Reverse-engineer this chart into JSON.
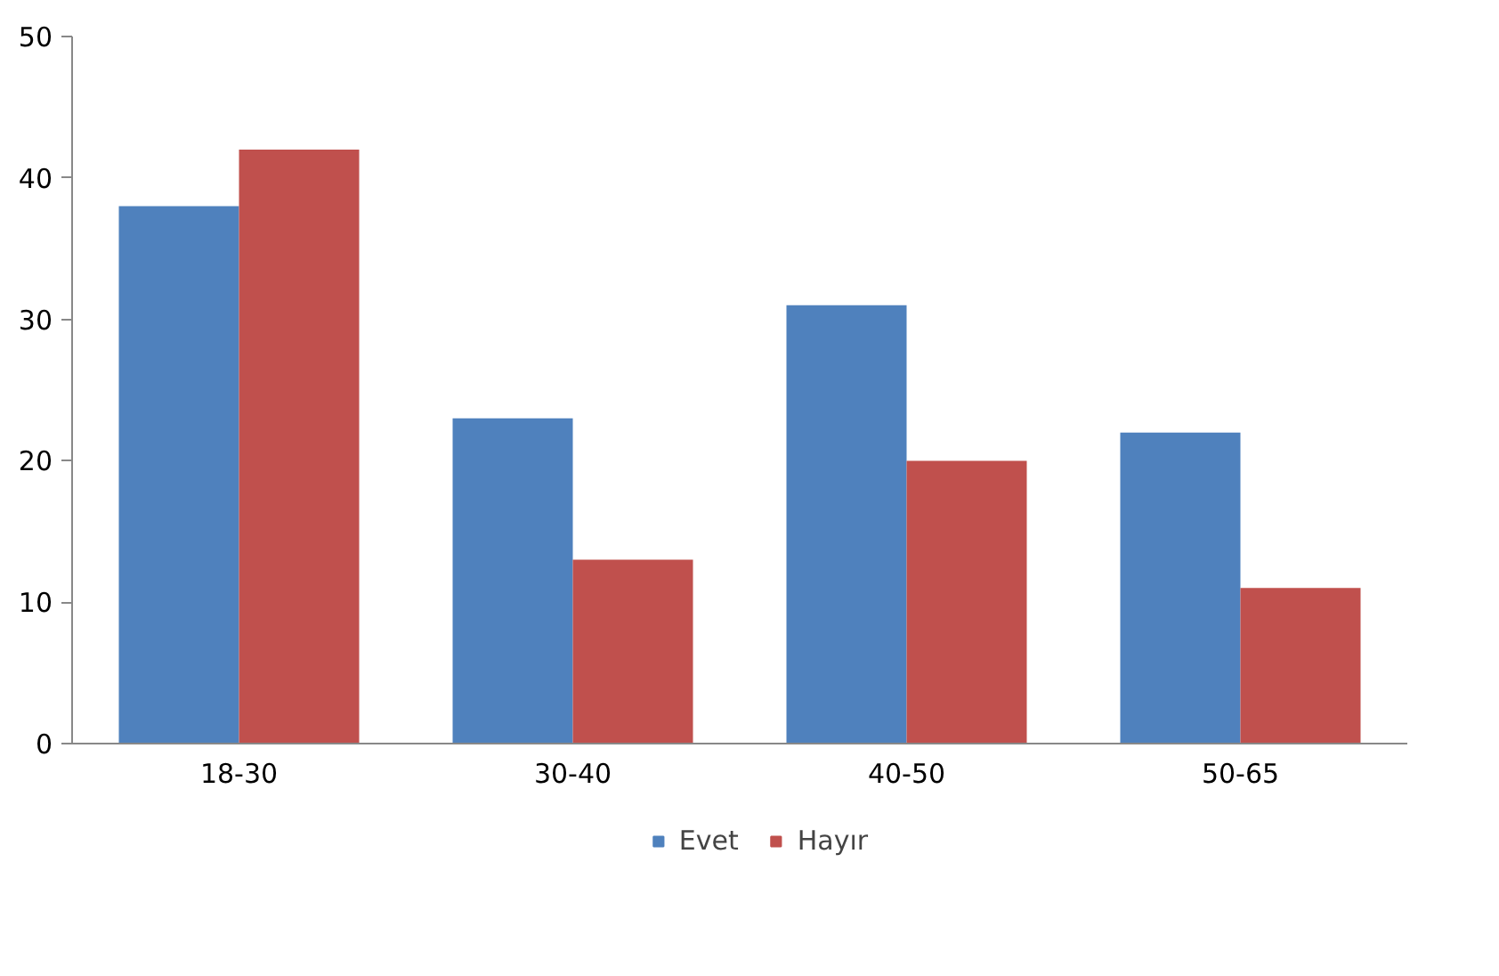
{
  "chart_data": {
    "type": "bar",
    "categories": [
      "18-30",
      "30-40",
      "40-50",
      "50-65"
    ],
    "series": [
      {
        "name": "Evet",
        "color": "#4f81bd",
        "values": [
          38,
          23,
          31,
          22
        ]
      },
      {
        "name": "Hayır",
        "color": "#c0504d",
        "values": [
          42,
          13,
          20,
          11
        ]
      }
    ],
    "ylim": [
      0,
      50
    ],
    "yticks": [
      0,
      10,
      20,
      30,
      40,
      50
    ],
    "grid": false,
    "legend": "bottom"
  }
}
